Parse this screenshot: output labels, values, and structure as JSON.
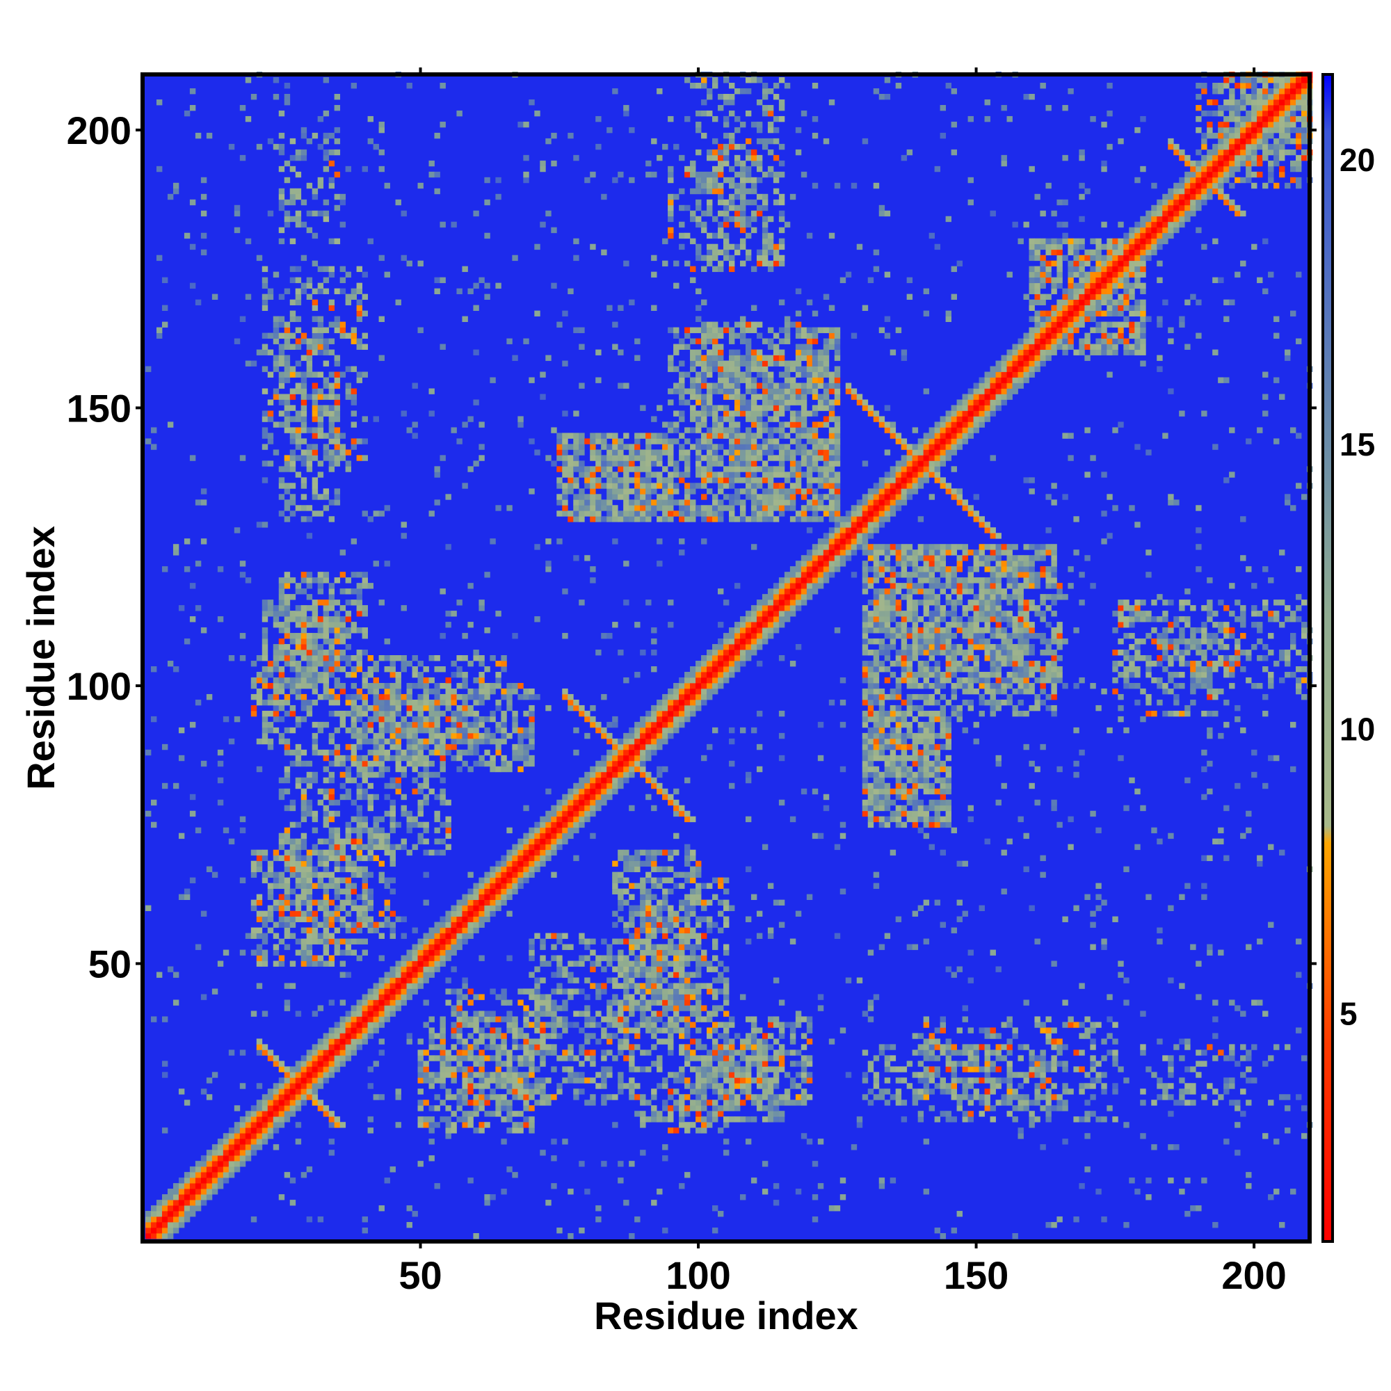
{
  "chart_data": {
    "type": "heatmap",
    "title": "",
    "xlabel": "Residue index",
    "ylabel": "Residue index",
    "xlim": [
      1,
      210
    ],
    "ylim": [
      1,
      210
    ],
    "x_ticks": [
      50,
      100,
      150,
      200
    ],
    "y_ticks": [
      50,
      100,
      150,
      200
    ],
    "x_tick_labels": [
      "50",
      "100",
      "150",
      "200"
    ],
    "y_tick_labels": [
      "50",
      "100",
      "150",
      "200"
    ],
    "colorbar": {
      "range": [
        1,
        21.5
      ],
      "ticks": [
        5,
        10,
        15,
        20
      ],
      "tick_labels": [
        "5",
        "10",
        "15",
        "20"
      ],
      "stops": [
        {
          "value": 1,
          "color": "#ff0000"
        },
        {
          "value": 4.5,
          "color": "#ff3b00"
        },
        {
          "value": 8,
          "color": "#ffa500"
        },
        {
          "value": 8.3,
          "color": "#a8b98a"
        },
        {
          "value": 12,
          "color": "#8fab90"
        },
        {
          "value": 15,
          "color": "#6a8ca8"
        },
        {
          "value": 20.5,
          "color": "#3a55d8"
        },
        {
          "value": 21.5,
          "color": "#0000ff"
        }
      ]
    },
    "value_description": "inter-residue distance (colorbar units); diagonal ~1-4, background 21",
    "diagonal": {
      "band_values": [
        1,
        3.5,
        7,
        11.5,
        14.5
      ]
    },
    "features": [
      {
        "kind": "cross",
        "center": [
          28,
          28
        ],
        "half_len": 7,
        "value": 6
      },
      {
        "kind": "cross",
        "center": [
          87,
          87
        ],
        "half_len": 11,
        "value": 6
      },
      {
        "kind": "cross",
        "center": [
          140,
          140
        ],
        "half_len": 13,
        "value": 6
      },
      {
        "kind": "cross",
        "center": [
          191,
          191
        ],
        "half_len": 6,
        "value": 6
      },
      {
        "kind": "patch",
        "x": [
          22,
          35
        ],
        "y": [
          100,
          115
        ],
        "density": 0.55
      },
      {
        "kind": "patch",
        "x": [
          20,
          40
        ],
        "y": [
          50,
          70
        ],
        "density": 0.5
      },
      {
        "kind": "patch",
        "x": [
          38,
          70
        ],
        "y": [
          85,
          100
        ],
        "density": 0.55
      },
      {
        "kind": "patch",
        "x": [
          75,
          95
        ],
        "y": [
          130,
          145
        ],
        "density": 0.55
      },
      {
        "kind": "patch",
        "x": [
          100,
          125
        ],
        "y": [
          130,
          160
        ],
        "density": 0.5
      },
      {
        "kind": "patch",
        "x": [
          130,
          145
        ],
        "y": [
          75,
          95
        ],
        "density": 0.55
      },
      {
        "kind": "patch",
        "x": [
          130,
          165
        ],
        "y": [
          95,
          125
        ],
        "density": 0.5
      },
      {
        "kind": "patch",
        "x": [
          105,
          120
        ],
        "y": [
          25,
          40
        ],
        "density": 0.5
      },
      {
        "kind": "patch",
        "x": [
          70,
          90
        ],
        "y": [
          25,
          55
        ],
        "density": 0.45
      },
      {
        "kind": "patch",
        "x": [
          90,
          105
        ],
        "y": [
          20,
          65
        ],
        "density": 0.45
      },
      {
        "kind": "patch",
        "x": [
          55,
          72
        ],
        "y": [
          25,
          45
        ],
        "density": 0.45
      },
      {
        "kind": "patch",
        "x": [
          22,
          40
        ],
        "y": [
          140,
          175
        ],
        "density": 0.3
      },
      {
        "kind": "patch",
        "x": [
          100,
          115
        ],
        "y": [
          175,
          210
        ],
        "density": 0.3
      },
      {
        "kind": "patch",
        "x": [
          175,
          195
        ],
        "y": [
          95,
          115
        ],
        "density": 0.3
      },
      {
        "kind": "patch",
        "x": [
          130,
          165
        ],
        "y": [
          25,
          35
        ],
        "density": 0.35
      },
      {
        "kind": "patch",
        "x": [
          180,
          200
        ],
        "y": [
          25,
          35
        ],
        "density": 0.3
      },
      {
        "kind": "patch",
        "x": [
          195,
          210
        ],
        "y": [
          190,
          210
        ],
        "density": 0.5
      },
      {
        "kind": "patch",
        "x": [
          160,
          180
        ],
        "y": [
          160,
          180
        ],
        "density": 0.5
      }
    ]
  }
}
